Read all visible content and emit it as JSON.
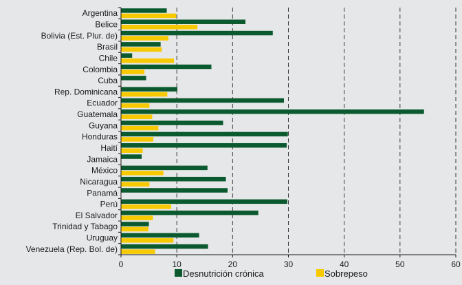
{
  "chart_data": {
    "type": "bar",
    "orientation": "horizontal",
    "categories": [
      "Argentina",
      "Belice",
      "Bolivia (Est. Plur. de)",
      "Brasil",
      "Chile",
      "Colombia",
      "Cuba",
      "Rep. Dominicana",
      "Ecuador",
      "Guatemala",
      "Guyana",
      "Honduras",
      "Haití",
      "Jamaica",
      "México",
      "Nicaragua",
      "Panamá",
      "Perú",
      "El Salvador",
      "Trinidad y Tabago",
      "Uruguay",
      "Venezuela (Rep. Bol. de)"
    ],
    "series": [
      {
        "name": "Desnutrición crónica",
        "color": "#0b5a2f",
        "values": [
          8.2,
          22.3,
          27.2,
          7.1,
          2.0,
          16.2,
          4.5,
          10.1,
          29.2,
          54.3,
          18.3,
          29.9,
          29.7,
          3.7,
          15.5,
          18.8,
          19.1,
          29.8,
          24.6,
          5.0,
          14.0,
          15.6
        ]
      },
      {
        "name": "Sobrepeso",
        "color": "#f7c900",
        "values": [
          9.9,
          13.7,
          8.5,
          7.3,
          9.5,
          4.2,
          null,
          8.3,
          5.1,
          5.6,
          6.7,
          5.8,
          3.9,
          null,
          7.6,
          5.1,
          null,
          9.0,
          5.7,
          4.9,
          9.4,
          6.1
        ]
      }
    ],
    "xlim": [
      0,
      60
    ],
    "xticks": [
      0,
      10,
      20,
      30,
      40,
      50,
      60
    ],
    "grid": "vertical dashed",
    "legend_position": "bottom",
    "title": "",
    "xlabel": "",
    "ylabel": ""
  }
}
